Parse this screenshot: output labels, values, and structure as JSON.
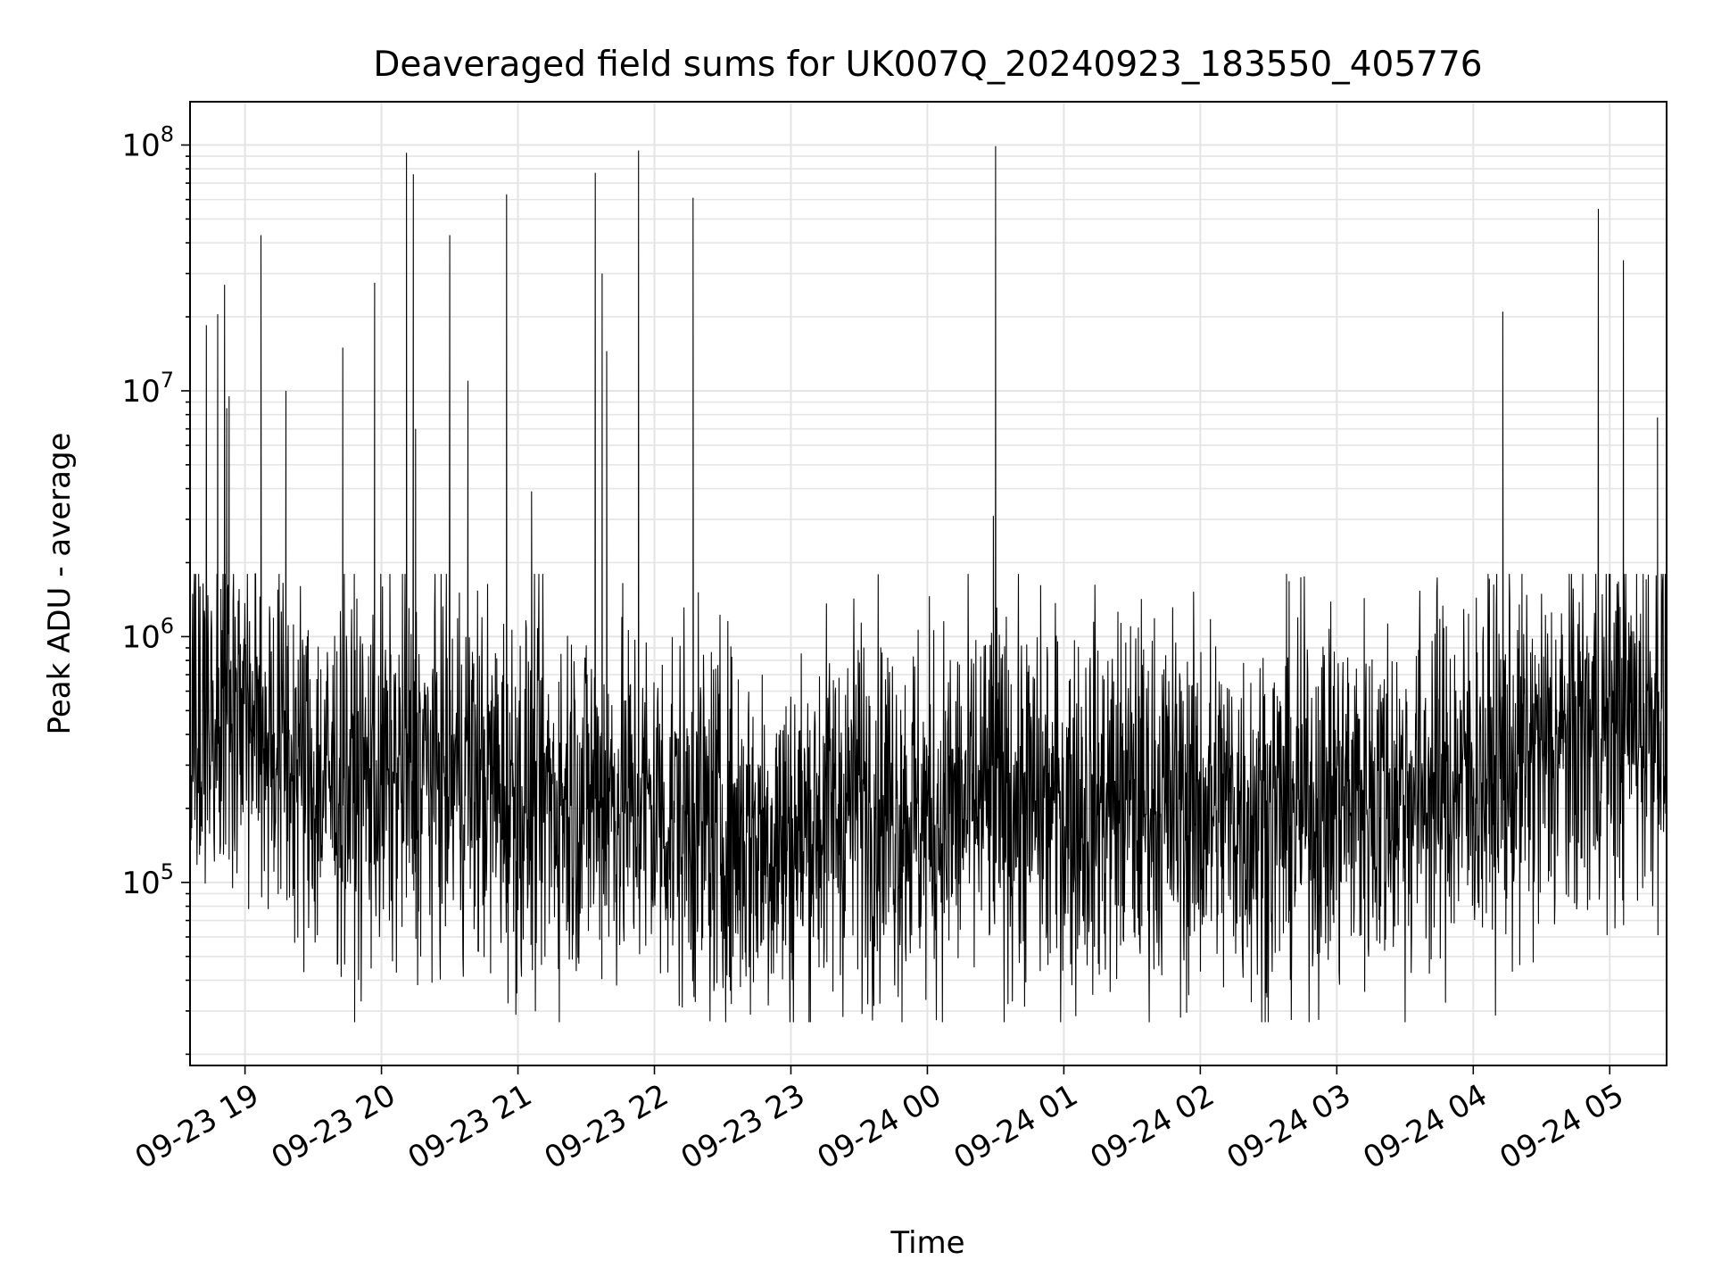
{
  "chart_data": {
    "type": "line",
    "title": "Deaveraged field sums for UK007Q_20240923_183550_405776",
    "xlabel": "Time",
    "ylabel": "Peak ADU - average",
    "yscale": "log",
    "ylim": [
      18000,
      150000000
    ],
    "xlim": [
      "2024-09-23 18:35:50",
      "2024-09-24 05:25:00"
    ],
    "grid": "both",
    "x_ticks": [
      "09-23 19",
      "09-23 20",
      "09-23 21",
      "09-23 22",
      "09-23 23",
      "09-24 00",
      "09-24 01",
      "09-24 02",
      "09-24 03",
      "09-24 04",
      "09-24 05"
    ],
    "x_tick_times": [
      "2024-09-23 19:00",
      "2024-09-23 20:00",
      "2024-09-23 21:00",
      "2024-09-23 22:00",
      "2024-09-23 23:00",
      "2024-09-24 00:00",
      "2024-09-24 01:00",
      "2024-09-24 02:00",
      "2024-09-24 03:00",
      "2024-09-24 04:00",
      "2024-09-24 05:00"
    ],
    "y_ticks": [
      {
        "value": 100000,
        "base": "10",
        "exp": "5"
      },
      {
        "value": 1000000,
        "base": "10",
        "exp": "6"
      },
      {
        "value": 10000000,
        "base": "10",
        "exp": "7"
      },
      {
        "value": 100000000,
        "base": "10",
        "exp": "8"
      }
    ],
    "series": [
      {
        "color": "#000000",
        "baseline": [
          [
            "2024-09-23 18:36",
            350000
          ],
          [
            "2024-09-23 18:50",
            600000
          ],
          [
            "2024-09-23 19:05",
            480000
          ],
          [
            "2024-09-23 19:30",
            250000
          ],
          [
            "2024-09-23 20:00",
            260000
          ],
          [
            "2024-09-23 20:30",
            300000
          ],
          [
            "2024-09-23 21:00",
            220000
          ],
          [
            "2024-09-23 21:30",
            230000
          ],
          [
            "2024-09-23 22:00",
            200000
          ],
          [
            "2024-09-23 22:30",
            160000
          ],
          [
            "2024-09-23 23:00",
            150000
          ],
          [
            "2024-09-23 23:30",
            230000
          ],
          [
            "2024-09-24 00:00",
            180000
          ],
          [
            "2024-09-24 00:30",
            220000
          ],
          [
            "2024-09-24 01:00",
            200000
          ],
          [
            "2024-09-24 01:30",
            220000
          ],
          [
            "2024-09-24 02:00",
            200000
          ],
          [
            "2024-09-24 02:30",
            190000
          ],
          [
            "2024-09-24 03:00",
            220000
          ],
          [
            "2024-09-24 03:30",
            230000
          ],
          [
            "2024-09-24 04:00",
            270000
          ],
          [
            "2024-09-24 04:30",
            320000
          ],
          [
            "2024-09-24 05:00",
            450000
          ],
          [
            "2024-09-24 05:25",
            500000
          ]
        ],
        "spikes": [
          [
            "2024-09-23 18:43",
            18500000
          ],
          [
            "2024-09-23 18:48",
            20500000
          ],
          [
            "2024-09-23 18:51",
            27000000
          ],
          [
            "2024-09-23 18:52",
            8500000
          ],
          [
            "2024-09-23 18:53",
            9500000
          ],
          [
            "2024-09-23 19:07",
            43000000
          ],
          [
            "2024-09-23 19:18",
            10000000
          ],
          [
            "2024-09-23 19:43",
            15000000
          ],
          [
            "2024-09-23 19:57",
            27500000
          ],
          [
            "2024-09-23 20:11",
            93000000
          ],
          [
            "2024-09-23 20:14",
            76000000
          ],
          [
            "2024-09-23 20:15",
            7000000
          ],
          [
            "2024-09-23 20:30",
            43000000
          ],
          [
            "2024-09-23 20:38",
            11000000
          ],
          [
            "2024-09-23 20:55",
            63000000
          ],
          [
            "2024-09-23 21:06",
            3900000
          ],
          [
            "2024-09-23 21:34",
            77000000
          ],
          [
            "2024-09-23 21:37",
            30000000
          ],
          [
            "2024-09-23 21:39",
            14500000
          ],
          [
            "2024-09-23 21:53",
            95000000
          ],
          [
            "2024-09-23 22:17",
            61000000
          ],
          [
            "2024-09-24 00:30",
            99000000
          ],
          [
            "2024-09-24 00:29",
            3100000
          ],
          [
            "2024-09-24 04:13",
            21000000
          ],
          [
            "2024-09-24 04:55",
            55000000
          ],
          [
            "2024-09-24 05:06",
            34000000
          ],
          [
            "2024-09-24 05:21",
            7800000
          ]
        ]
      }
    ]
  }
}
